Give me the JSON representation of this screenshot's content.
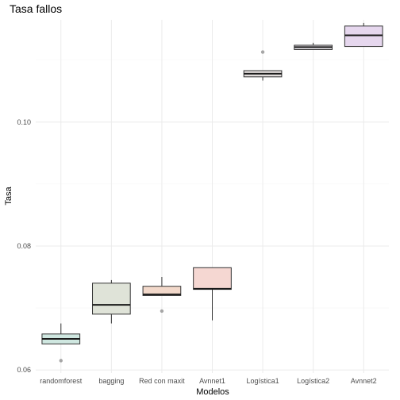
{
  "chart_data": {
    "type": "box",
    "title": "Tasa fallos",
    "xlabel": "Modelos",
    "ylabel": "Tasa",
    "categories": [
      "randomforest",
      "bagging",
      "Red con maxit",
      "Avnnet1",
      "Logística1",
      "Logística2",
      "Avnnet2"
    ],
    "yticks": [
      0.06,
      0.08,
      0.1
    ],
    "ytick_labels": [
      "0.06",
      "0.08",
      "0.10"
    ],
    "ylim": [
      0.0595,
      0.1165
    ],
    "grid": true,
    "legend": "none",
    "boxes": [
      {
        "category": "randomforest",
        "min": 0.0642,
        "q1": 0.0642,
        "median": 0.065,
        "q3": 0.0658,
        "max": 0.0675,
        "outliers": [
          0.0615
        ],
        "fill": "#cfe7e0"
      },
      {
        "category": "bagging",
        "min": 0.0675,
        "q1": 0.069,
        "median": 0.0705,
        "q3": 0.074,
        "max": 0.0745,
        "outliers": [],
        "fill": "#dfe3d8"
      },
      {
        "category": "Red con maxit",
        "min": 0.072,
        "q1": 0.072,
        "median": 0.0722,
        "q3": 0.0735,
        "max": 0.075,
        "outliers": [
          0.0695
        ],
        "fill": "#f2d8ca"
      },
      {
        "category": "Avnnet1",
        "min": 0.068,
        "q1": 0.073,
        "median": 0.0731,
        "q3": 0.0765,
        "max": 0.0765,
        "outliers": [],
        "fill": "#f5d7d2"
      },
      {
        "category": "Logística1",
        "min": 0.1067,
        "q1": 0.1073,
        "median": 0.1078,
        "q3": 0.1083,
        "max": 0.1083,
        "outliers": [
          0.1113
        ],
        "fill": "#e3dedd"
      },
      {
        "category": "Logística2",
        "min": 0.1117,
        "q1": 0.1117,
        "median": 0.1121,
        "q3": 0.1124,
        "max": 0.1128,
        "outliers": [],
        "fill": "#e6e2e8"
      },
      {
        "category": "Avnnet2",
        "min": 0.1122,
        "q1": 0.1122,
        "median": 0.114,
        "q3": 0.1155,
        "max": 0.116,
        "outliers": [],
        "fill": "#e6d7ee"
      }
    ]
  }
}
